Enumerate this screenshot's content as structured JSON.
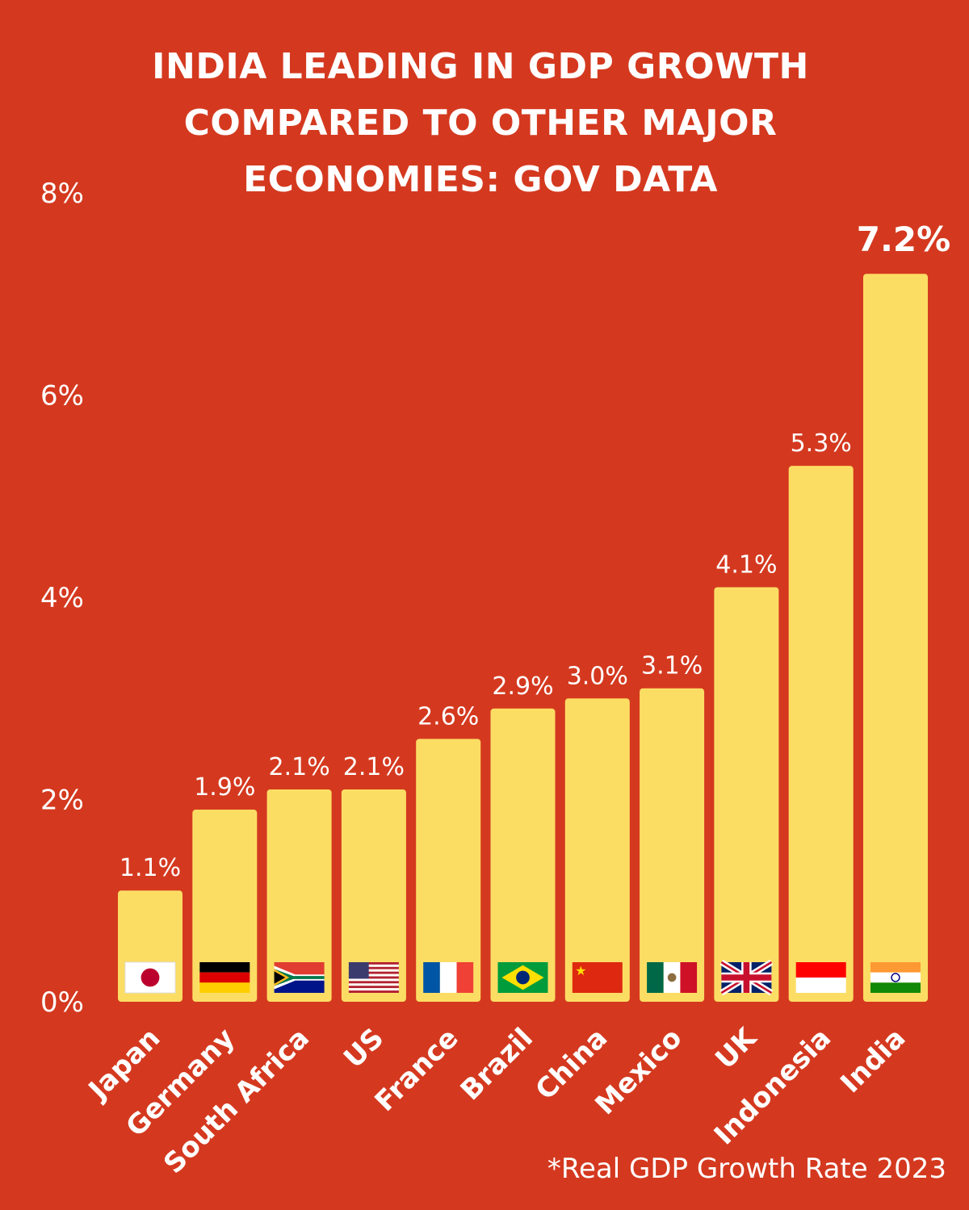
{
  "colors": {
    "background": "#d4391f",
    "bar": "#fcdd64",
    "text": "#ffffff"
  },
  "chart_data": {
    "type": "bar",
    "title": "INDIA LEADING IN GDP GROWTH COMPARED TO OTHER MAJOR ECONOMIES: GOV DATA",
    "categories": [
      "Japan",
      "Germany",
      "South Africa",
      "US",
      "France",
      "Brazil",
      "China",
      "Mexico",
      "UK",
      "Indonesia",
      "India"
    ],
    "values": [
      1.1,
      1.9,
      2.1,
      2.1,
      2.6,
      2.9,
      3.0,
      3.1,
      4.1,
      5.3,
      7.2
    ],
    "value_labels": [
      "1.1%",
      "1.9%",
      "2.1%",
      "2.1%",
      "2.6%",
      "2.9%",
      "3.0%",
      "3.1%",
      "4.1%",
      "5.3%",
      "7.2%"
    ],
    "flag_icons": [
      "japan-flag-icon",
      "germany-flag-icon",
      "south-africa-flag-icon",
      "us-flag-icon",
      "france-flag-icon",
      "brazil-flag-icon",
      "china-flag-icon",
      "mexico-flag-icon",
      "uk-flag-icon",
      "indonesia-flag-icon",
      "india-flag-icon"
    ],
    "yticks": [
      "0%",
      "2%",
      "4%",
      "6%",
      "8%"
    ],
    "ylim": [
      0,
      8
    ],
    "grid": false,
    "legend": "none",
    "footnote": "*Real GDP Growth Rate 2023"
  }
}
